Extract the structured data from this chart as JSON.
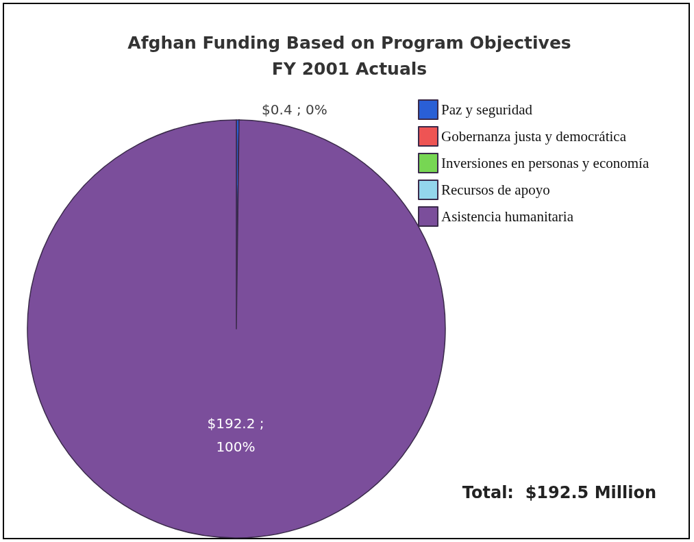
{
  "chart_data": {
    "type": "pie",
    "title": "Afghan Funding Based on Program Objectives\nFY 2001 Actuals",
    "categories": [
      "Paz y seguridad",
      "Gobernanza justa y democrática",
      "Inversiones en personas y economía",
      "Recursos de apoyo",
      "Asistencia humanitaria"
    ],
    "values": [
      0.4,
      0,
      0,
      0,
      192.2
    ],
    "colors": [
      "#2a5fd6",
      "#ee5454",
      "#77d653",
      "#93d6ec",
      "#7b4e9b"
    ],
    "value_labels": [
      "$0.4 ; 0%",
      null,
      null,
      null,
      "$192.2 ;\n100%"
    ],
    "legend": "top right",
    "annotations": [
      "Total:  $192.5 Million"
    ]
  }
}
